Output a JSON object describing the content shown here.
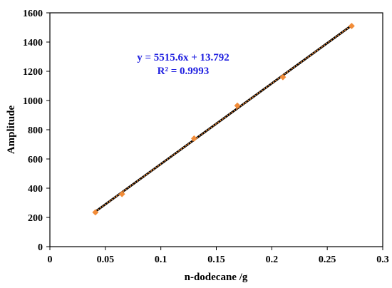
{
  "chart_data": {
    "type": "scatter",
    "xlabel": "n-dodecane /g",
    "ylabel": "Amplitude",
    "xlim": [
      0,
      0.3
    ],
    "ylim": [
      0,
      1600
    ],
    "xticks": [
      0,
      0.05,
      0.1,
      0.15,
      0.2,
      0.25,
      0.3
    ],
    "yticks": [
      0,
      200,
      400,
      600,
      800,
      1000,
      1200,
      1400,
      1600
    ],
    "grid": false,
    "series": [
      {
        "points": [
          {
            "x": 0.041,
            "y": 235
          },
          {
            "x": 0.065,
            "y": 360
          },
          {
            "x": 0.13,
            "y": 740
          },
          {
            "x": 0.169,
            "y": 965
          },
          {
            "x": 0.21,
            "y": 1160
          },
          {
            "x": 0.272,
            "y": 1510
          }
        ],
        "marker_color": "#f28c38"
      }
    ],
    "trendline": {
      "slope": 5515.6,
      "intercept": 13.792,
      "x_range": [
        0.041,
        0.272
      ],
      "color": "#000000",
      "dash_color": "#f28c38"
    },
    "annotation": {
      "equation": "y = 5515.6x + 13.792",
      "r_squared": "R² = 0.9993",
      "color": "#2020e0"
    }
  }
}
